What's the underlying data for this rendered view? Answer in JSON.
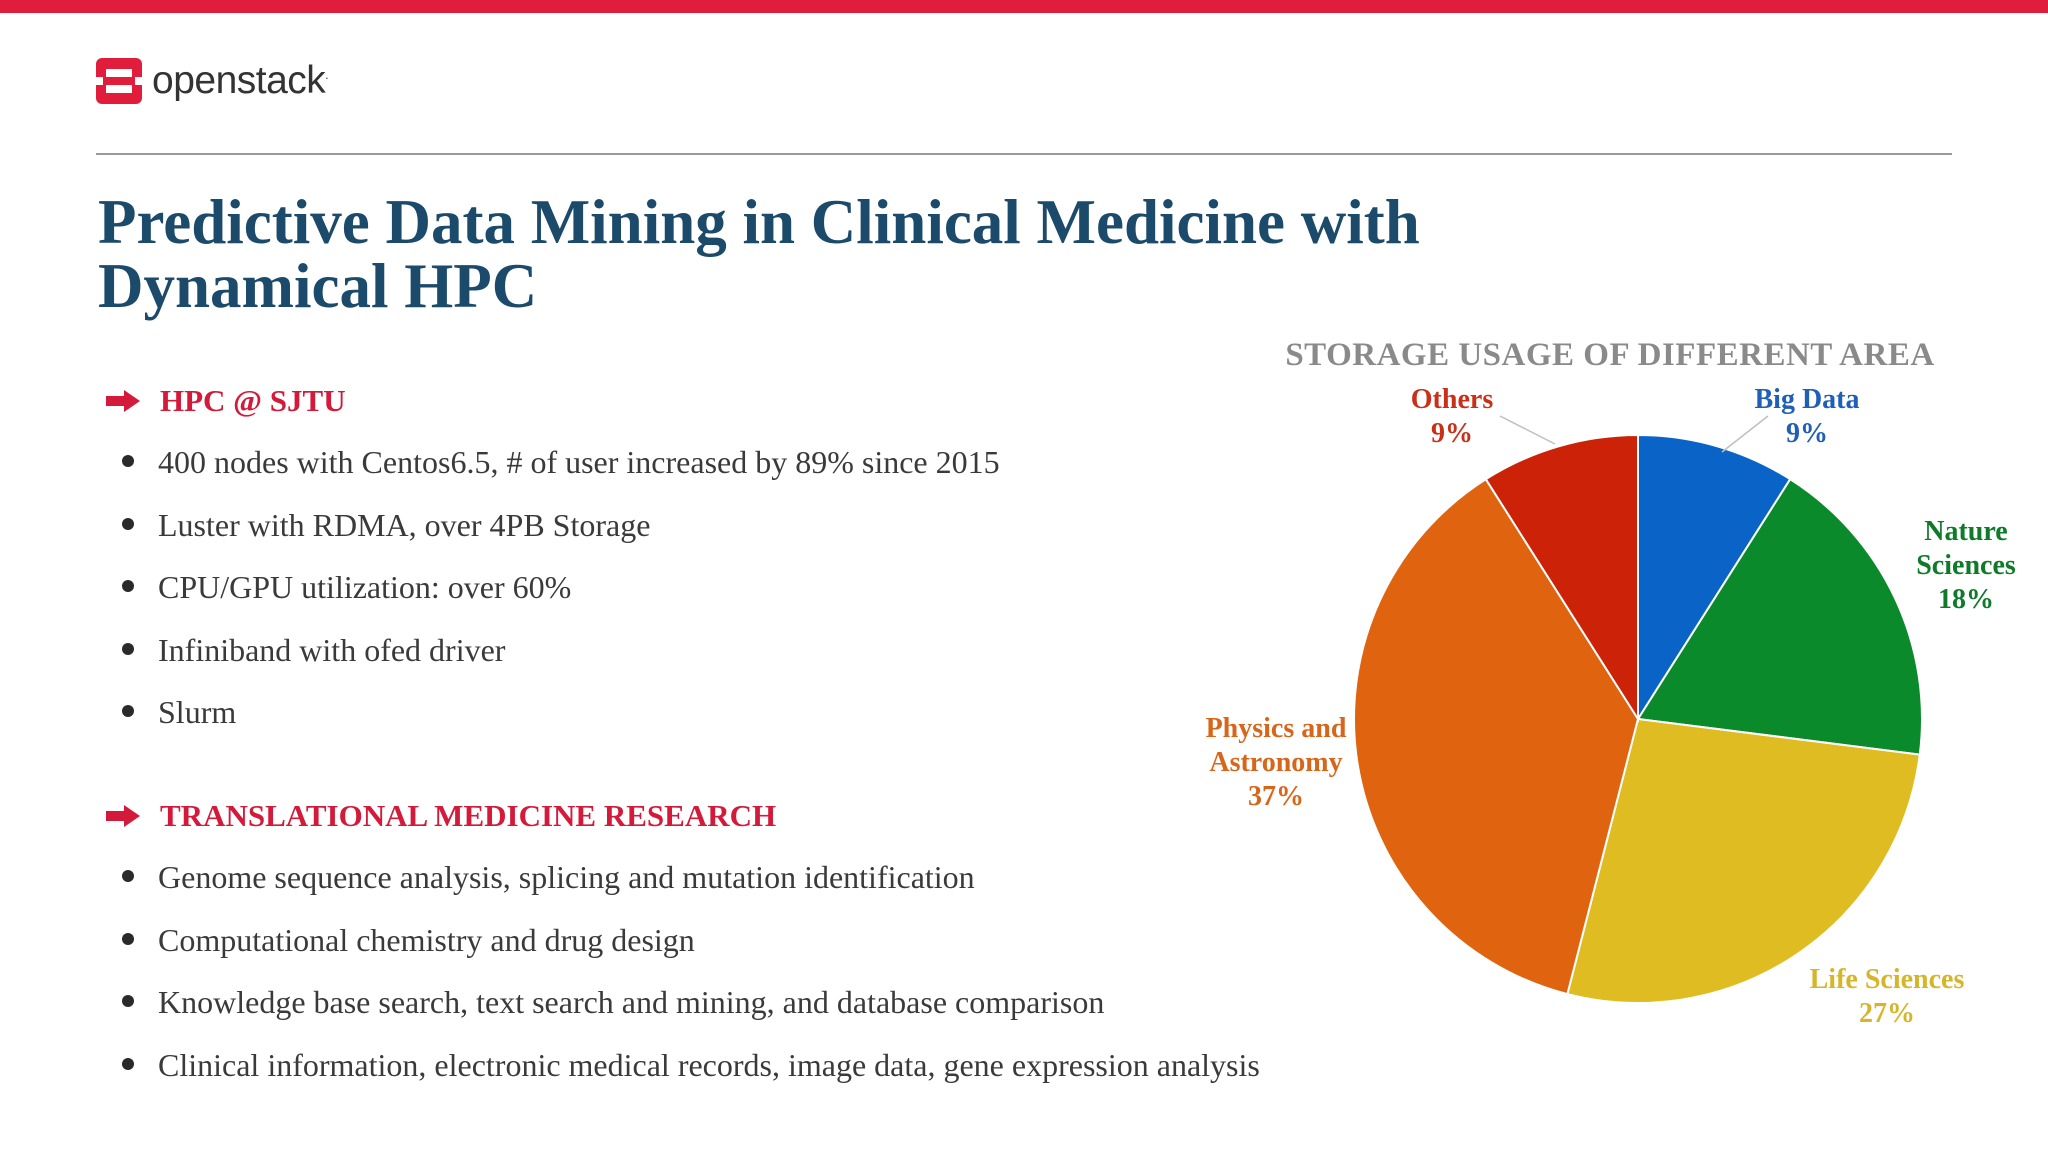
{
  "brand": {
    "logo_text": "openstack",
    "logo_mark": ".",
    "accent_color": "#e01e3c"
  },
  "page": {
    "title": "Predictive Data Mining in Clinical Medicine with Dynamical HPC"
  },
  "sections": [
    {
      "heading": "HPC @ SJTU",
      "bullets": [
        "400 nodes with Centos6.5, # of user increased by 89% since 2015",
        "Luster with RDMA, over 4PB Storage",
        "CPU/GPU utilization: over 60%",
        "Infiniband with ofed driver",
        "Slurm"
      ]
    },
    {
      "heading": "TRANSLATIONAL MEDICINE RESEARCH",
      "bullets": [
        "Genome sequence analysis, splicing and mutation identification",
        "Computational chemistry and drug design",
        "Knowledge base search, text search and mining, and database comparison",
        "Clinical information, electronic medical records, image data, gene expression analysis"
      ]
    }
  ],
  "chart_data": {
    "type": "pie",
    "title": "STORAGE USAGE OF DIFFERENT AREA",
    "slices": [
      {
        "label": [
          "Big Data"
        ],
        "value_label": "9%",
        "value": 9,
        "color": "#0a64c8",
        "label_color": "#1f5fb8"
      },
      {
        "label": [
          "Nature",
          "Sciences"
        ],
        "value_label": "18%",
        "value": 18,
        "color": "#0a8a2a",
        "label_color": "#0f7a2a"
      },
      {
        "label": [
          "Life Sciences"
        ],
        "value_label": "27%",
        "value": 27,
        "color": "#dfbd22",
        "label_color": "#d7b52a"
      },
      {
        "label": [
          "Physics and",
          "Astronomy"
        ],
        "value_label": "37%",
        "value": 37,
        "color": "#e06410",
        "label_color": "#d8661a"
      },
      {
        "label": [
          "Others"
        ],
        "value_label": "9%",
        "value": 9,
        "color": "#cc2208",
        "label_color": "#c8301a"
      }
    ]
  }
}
